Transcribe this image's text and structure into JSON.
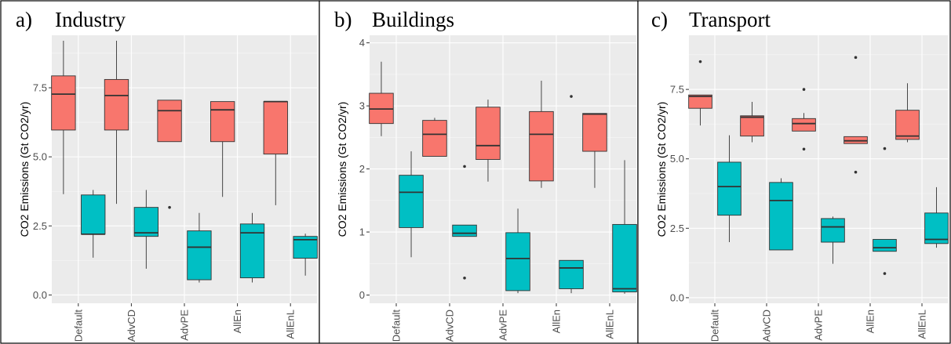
{
  "chart_data": [
    {
      "type": "boxplot",
      "panel_label": "a)",
      "title": "Industry",
      "ylabel": "CO2 Emissions (Gt CO2/yr)",
      "categories": [
        "Default",
        "AdvCD",
        "AdvPE",
        "AllEn",
        "AllEnL"
      ],
      "ylim": [
        -0.3,
        9.4
      ],
      "yticks": [
        0,
        2.5,
        5,
        7.5
      ],
      "ytick_labels": [
        "0.0",
        "2.5",
        "5.0",
        "7.5"
      ],
      "series": [
        {
          "color": "#F8766D",
          "boxes": [
            {
              "min": 3.65,
              "q1": 5.97,
              "median": 7.27,
              "q3": 7.93,
              "max": 9.2,
              "outliers": []
            },
            {
              "min": 3.3,
              "q1": 5.97,
              "median": 7.22,
              "q3": 7.8,
              "max": 9.2,
              "outliers": []
            },
            {
              "min": 5.55,
              "q1": 5.55,
              "median": 6.67,
              "q3": 7.05,
              "max": 7.05,
              "outliers": [
                3.17
              ]
            },
            {
              "min": 3.55,
              "q1": 5.55,
              "median": 6.7,
              "q3": 7.0,
              "max": 7.0,
              "outliers": []
            },
            {
              "min": 3.25,
              "q1": 5.1,
              "median": 7.0,
              "q3": 7.0,
              "max": 7.0,
              "outliers": []
            }
          ]
        },
        {
          "color": "#00BFC4",
          "boxes": [
            {
              "min": 1.35,
              "q1": 2.2,
              "median": 2.2,
              "q3": 3.62,
              "max": 3.8,
              "outliers": []
            },
            {
              "min": 0.95,
              "q1": 2.12,
              "median": 2.25,
              "q3": 3.17,
              "max": 3.8,
              "outliers": []
            },
            {
              "min": 0.45,
              "q1": 0.55,
              "median": 1.73,
              "q3": 2.32,
              "max": 2.97,
              "outliers": []
            },
            {
              "min": 0.45,
              "q1": 0.62,
              "median": 2.25,
              "q3": 2.57,
              "max": 2.97,
              "outliers": []
            },
            {
              "min": 0.7,
              "q1": 1.33,
              "median": 2.0,
              "q3": 2.12,
              "max": 2.22,
              "outliers": []
            }
          ]
        }
      ]
    },
    {
      "type": "boxplot",
      "panel_label": "b)",
      "title": "Buildings",
      "ylabel": "CO2 Emissions (Gt CO2/yr)",
      "categories": [
        "Default",
        "AdvCD",
        "AdvPE",
        "AllEn",
        "AllEnL"
      ],
      "ylim": [
        -0.13,
        4.12
      ],
      "yticks": [
        0,
        1,
        2,
        3,
        4
      ],
      "ytick_labels": [
        "0",
        "1",
        "2",
        "3",
        "4"
      ],
      "series": [
        {
          "color": "#F8766D",
          "boxes": [
            {
              "min": 2.52,
              "q1": 2.72,
              "median": 2.95,
              "q3": 3.2,
              "max": 3.7,
              "outliers": []
            },
            {
              "min": 2.2,
              "q1": 2.2,
              "median": 2.55,
              "q3": 2.77,
              "max": 2.81,
              "outliers": []
            },
            {
              "min": 1.8,
              "q1": 2.15,
              "median": 2.37,
              "q3": 2.98,
              "max": 3.1,
              "outliers": []
            },
            {
              "min": 1.7,
              "q1": 1.81,
              "median": 2.55,
              "q3": 2.91,
              "max": 3.4,
              "outliers": []
            },
            {
              "min": 1.7,
              "q1": 2.28,
              "median": 2.87,
              "q3": 2.88,
              "max": 2.88,
              "outliers": []
            }
          ]
        },
        {
          "color": "#00BFC4",
          "boxes": [
            {
              "min": 0.6,
              "q1": 1.07,
              "median": 1.63,
              "q3": 1.9,
              "max": 2.28,
              "outliers": []
            },
            {
              "min": 0.93,
              "q1": 0.93,
              "median": 0.98,
              "q3": 1.11,
              "max": 1.11,
              "outliers": [
                2.04,
                0.27
              ]
            },
            {
              "min": 0.03,
              "q1": 0.07,
              "median": 0.58,
              "q3": 0.99,
              "max": 1.37,
              "outliers": []
            },
            {
              "min": 0.03,
              "q1": 0.1,
              "median": 0.43,
              "q3": 0.55,
              "max": 0.55,
              "outliers": [
                3.15
              ]
            },
            {
              "min": 0.02,
              "q1": 0.05,
              "median": 0.1,
              "q3": 1.12,
              "max": 2.14,
              "outliers": []
            }
          ]
        }
      ]
    },
    {
      "type": "boxplot",
      "panel_label": "c)",
      "title": "Transport",
      "ylabel": "CO2 Emissions (Gt CO2/yr)",
      "categories": [
        "Default",
        "AdvCD",
        "AdvPE",
        "AllEn",
        "AllEnL"
      ],
      "ylim": [
        -0.2,
        9.45
      ],
      "yticks": [
        0,
        2.5,
        5,
        7.5
      ],
      "ytick_labels": [
        "0.0",
        "2.5",
        "5.0",
        "7.5"
      ],
      "series": [
        {
          "color": "#F8766D",
          "boxes": [
            {
              "min": 6.2,
              "q1": 6.82,
              "median": 7.25,
              "q3": 7.3,
              "max": 7.3,
              "outliers": [
                8.5
              ]
            },
            {
              "min": 5.6,
              "q1": 5.82,
              "median": 6.5,
              "q3": 6.55,
              "max": 7.05,
              "outliers": []
            },
            {
              "min": 6.0,
              "q1": 6.0,
              "median": 6.27,
              "q3": 6.45,
              "max": 6.65,
              "outliers": [
                7.5,
                5.35
              ]
            },
            {
              "min": 5.55,
              "q1": 5.55,
              "median": 5.65,
              "q3": 5.8,
              "max": 5.8,
              "outliers": [
                8.65,
                4.52
              ]
            },
            {
              "min": 5.6,
              "q1": 5.7,
              "median": 5.82,
              "q3": 6.75,
              "max": 7.72,
              "outliers": []
            }
          ]
        },
        {
          "color": "#00BFC4",
          "boxes": [
            {
              "min": 2.0,
              "q1": 2.97,
              "median": 4.0,
              "q3": 4.88,
              "max": 5.85,
              "outliers": []
            },
            {
              "min": 1.72,
              "q1": 1.72,
              "median": 3.5,
              "q3": 4.15,
              "max": 4.3,
              "outliers": []
            },
            {
              "min": 1.22,
              "q1": 2.0,
              "median": 2.55,
              "q3": 2.85,
              "max": 2.92,
              "outliers": []
            },
            {
              "min": 1.67,
              "q1": 1.67,
              "median": 1.8,
              "q3": 2.1,
              "max": 2.1,
              "outliers": [
                5.37,
                0.87
              ]
            },
            {
              "min": 1.8,
              "q1": 1.95,
              "median": 2.1,
              "q3": 3.05,
              "max": 3.98,
              "outliers": []
            }
          ]
        }
      ]
    }
  ]
}
